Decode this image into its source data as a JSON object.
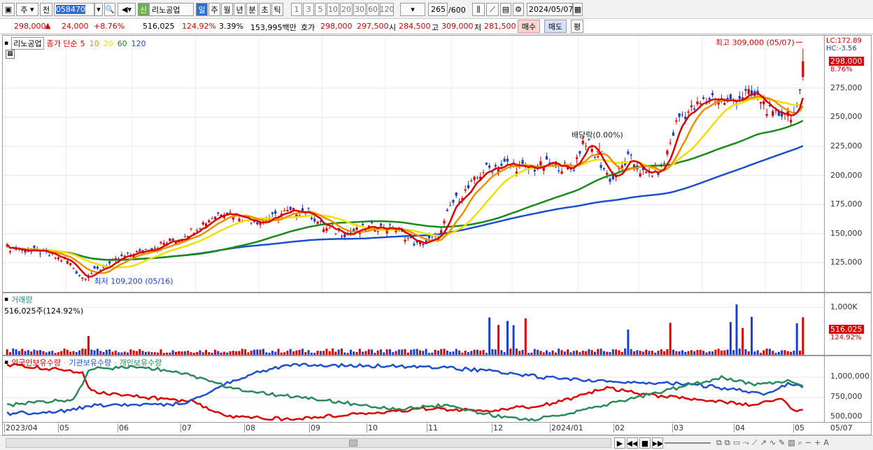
{
  "toolbar": {
    "market": "주",
    "prev": "전",
    "code": "058470",
    "badge": "신",
    "name": "리노공업",
    "periods": [
      "일",
      "주",
      "월",
      "년",
      "분",
      "초",
      "틱"
    ],
    "minutes": [
      "1",
      "3",
      "5",
      "10",
      "20",
      "30",
      "60",
      "120"
    ],
    "count": "265",
    "count_max": "/600",
    "date": "2024/05/07"
  },
  "quote": {
    "price": "298,000",
    "change": "24,000",
    "rate": "+8.76%",
    "volume": "516,025",
    "vol_rate": "124.92%",
    "turnover": "3.39%",
    "amount": "153,995백만",
    "ask_label": "호가",
    "ask": "298,000",
    "bid": "297,500",
    "open_label": "시",
    "open": "284,500",
    "high_label": "고",
    "high": "309,000",
    "low_label": "저",
    "low": "281,500",
    "buy": "매수",
    "sell": "매도",
    "eval": "평"
  },
  "price_pane": {
    "stock_tag": "리노공업",
    "legend_prefix": "종가 단순",
    "ma": [
      {
        "n": "5",
        "color": "#dd0000"
      },
      {
        "n": "10",
        "color": "#f09000"
      },
      {
        "n": "20",
        "color": "#f0e000"
      },
      {
        "n": "60",
        "color": "#1a8a1a"
      },
      {
        "n": "120",
        "color": "#1a4fd0"
      }
    ],
    "lc": "LC:172.89",
    "hc": "HC:-3.56",
    "cur": "298,000",
    "cur_rate": "8.76%",
    "high_note": "최고 309,000 (05/07)",
    "low_note": "최저 109,200 (05/16)",
    "dividend_note": "배당락(0.00%)",
    "yticks": [
      "275,000",
      "250,000",
      "225,000",
      "200,000",
      "175,000",
      "150,000",
      "125,000"
    ]
  },
  "volume_pane": {
    "title": "거래량",
    "value": "516,025주(124.92%)",
    "ytick": "1,000K",
    "cur": "516,025",
    "cur_rate": "124.92%"
  },
  "holding_pane": {
    "series": [
      {
        "name": "외국인보유수량",
        "color": "#dd0000"
      },
      {
        "name": "기관보유수량",
        "color": "#1a4fd0"
      },
      {
        "name": "개인보유수량",
        "color": "#2a8a5a"
      }
    ],
    "yticks": [
      "1,000,000",
      "750,000",
      "500,000"
    ]
  },
  "xaxis": [
    "2023/04",
    "05",
    "06",
    "07",
    "08",
    "09",
    "10",
    "11",
    "12",
    "2024/01",
    "02",
    "03",
    "04",
    "05"
  ],
  "xaxis_right": "05/07",
  "colors": {
    "up": "#dd0000",
    "down": "#1a3fd0"
  }
}
